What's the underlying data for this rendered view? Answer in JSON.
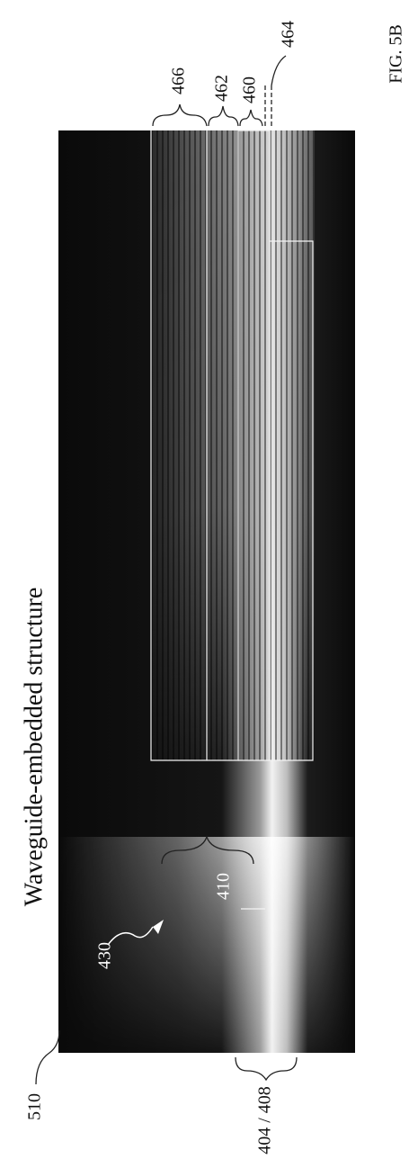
{
  "title": "Waveguide-embedded structure",
  "figure_label": "FIG. 5B",
  "reference_labels": [
    "466",
    "462",
    "460",
    "464",
    "410",
    "430",
    "510",
    "404 / 408"
  ]
}
